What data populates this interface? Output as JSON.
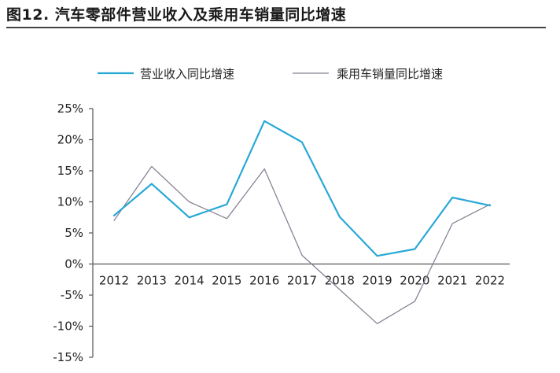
{
  "title": "图12. 汽车零部件营业收入及乘用车销量同比增速",
  "chart_data": {
    "type": "line",
    "title": "",
    "xlabel": "",
    "ylabel": "",
    "categories": [
      "2012",
      "2013",
      "2014",
      "2015",
      "2016",
      "2017",
      "2018",
      "2019",
      "2020",
      "2021",
      "2022"
    ],
    "ylim": [
      -15,
      25
    ],
    "yticks": [
      -15,
      -10,
      -5,
      0,
      5,
      10,
      15,
      20,
      25
    ],
    "ytick_labels": [
      "-15%",
      "-10%",
      "-5%",
      "0%",
      "5%",
      "10%",
      "15%",
      "20%",
      "25%"
    ],
    "grid": false,
    "legend": "top",
    "series": [
      {
        "name": "营业收入同比增速",
        "color": "#29a8d6",
        "values": [
          7.8,
          12.9,
          7.5,
          9.6,
          23.0,
          19.6,
          7.6,
          1.3,
          2.4,
          10.7,
          9.4
        ]
      },
      {
        "name": "乘用车销量同比增速",
        "color": "#8a8294",
        "values": [
          7.0,
          15.7,
          10.0,
          7.3,
          15.3,
          1.4,
          -4.1,
          -9.6,
          -6.0,
          6.5,
          9.6
        ]
      }
    ]
  }
}
